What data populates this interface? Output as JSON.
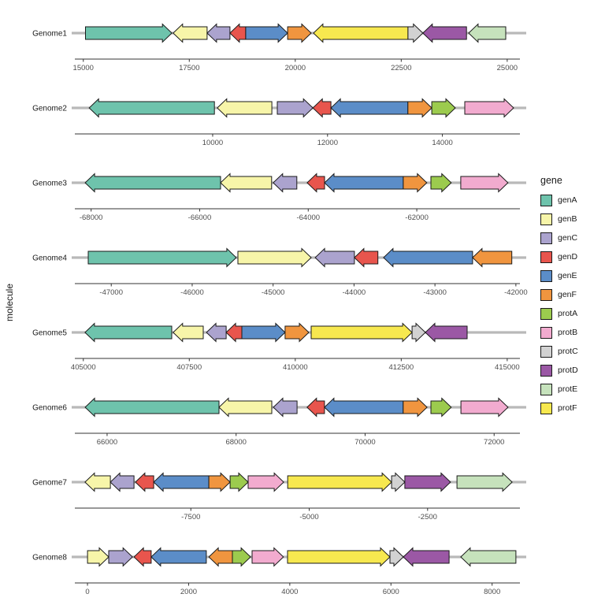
{
  "y_axis_label": "molecule",
  "legend": {
    "title": "gene",
    "entries": [
      {
        "label": "genA",
        "color": "#6EC3AC"
      },
      {
        "label": "genB",
        "color": "#F7F5A9"
      },
      {
        "label": "genC",
        "color": "#ABA3CE"
      },
      {
        "label": "genD",
        "color": "#E8554D"
      },
      {
        "label": "genE",
        "color": "#5B8DC8"
      },
      {
        "label": "genF",
        "color": "#F0953F"
      },
      {
        "label": "protA",
        "color": "#9CCB4E"
      },
      {
        "label": "protB",
        "color": "#F2ABCF"
      },
      {
        "label": "protC",
        "color": "#D2D2D2"
      },
      {
        "label": "protD",
        "color": "#9B58A5"
      },
      {
        "label": "protE",
        "color": "#C6E2BC"
      },
      {
        "label": "protF",
        "color": "#F7E84F"
      }
    ]
  },
  "chart_data": {
    "type": "gene_arrow_map",
    "title": "",
    "xlabel": "",
    "ylabel": "molecule",
    "legend_title": "gene",
    "track_color": "#B9B9B9",
    "outline_color": "#1A1A1A",
    "axis_color": "#333333",
    "tick_label_color": "#4D4D4D",
    "genomes": [
      {
        "name": "Genome1",
        "xlim": [
          14800,
          25300
        ],
        "ticks": [
          15000,
          17500,
          20000,
          22500,
          25000
        ],
        "genes": [
          {
            "gene": "genA",
            "start": 15050,
            "end": 17090,
            "strand": "+"
          },
          {
            "gene": "genB",
            "start": 17120,
            "end": 17920,
            "strand": "-"
          },
          {
            "gene": "genC",
            "start": 17920,
            "end": 18460,
            "strand": "-"
          },
          {
            "gene": "genD",
            "start": 18460,
            "end": 18830,
            "strand": "-"
          },
          {
            "gene": "genE",
            "start": 18830,
            "end": 19820,
            "strand": "+"
          },
          {
            "gene": "genF",
            "start": 19820,
            "end": 20375,
            "strand": "+"
          },
          {
            "gene": "protF",
            "start": 20430,
            "end": 22660,
            "strand": "-"
          },
          {
            "gene": "protC",
            "start": 22660,
            "end": 23010,
            "strand": "+"
          },
          {
            "gene": "protD",
            "start": 23010,
            "end": 24040,
            "strand": "-"
          },
          {
            "gene": "protE",
            "start": 24090,
            "end": 24965,
            "strand": "-"
          }
        ]
      },
      {
        "name": "Genome2",
        "xlim": [
          7600,
          15350
        ],
        "ticks": [
          10000,
          12000,
          14000
        ],
        "genes": [
          {
            "gene": "genA",
            "start": 7850,
            "end": 10030,
            "strand": "-"
          },
          {
            "gene": "genB",
            "start": 10080,
            "end": 11030,
            "strand": "-"
          },
          {
            "gene": "genC",
            "start": 11125,
            "end": 11745,
            "strand": "+"
          },
          {
            "gene": "genD",
            "start": 11745,
            "end": 12060,
            "strand": "-"
          },
          {
            "gene": "genE",
            "start": 12060,
            "end": 13400,
            "strand": "-"
          },
          {
            "gene": "genF",
            "start": 13400,
            "end": 13815,
            "strand": "+"
          },
          {
            "gene": "protA",
            "start": 13815,
            "end": 14225,
            "strand": "+"
          },
          {
            "gene": "protB",
            "start": 14390,
            "end": 15240,
            "strand": "+"
          }
        ]
      },
      {
        "name": "Genome3",
        "xlim": [
          -68300,
          -60100
        ],
        "ticks": [
          -68000,
          -66000,
          -64000,
          -62000
        ],
        "genes": [
          {
            "gene": "genA",
            "start": -68110,
            "end": -65615,
            "strand": "-"
          },
          {
            "gene": "genB",
            "start": -65615,
            "end": -64675,
            "strand": "-"
          },
          {
            "gene": "genC",
            "start": -64645,
            "end": -64210,
            "strand": "-"
          },
          {
            "gene": "genD",
            "start": -64020,
            "end": -63700,
            "strand": "-"
          },
          {
            "gene": "genE",
            "start": -63700,
            "end": -62250,
            "strand": "-"
          },
          {
            "gene": "genF",
            "start": -62250,
            "end": -61815,
            "strand": "+"
          },
          {
            "gene": "protA",
            "start": -61740,
            "end": -61365,
            "strand": "+"
          },
          {
            "gene": "protB",
            "start": -61190,
            "end": -60320,
            "strand": "+"
          }
        ]
      },
      {
        "name": "Genome4",
        "xlim": [
          -47450,
          -41950
        ],
        "ticks": [
          -47000,
          -46000,
          -45000,
          -44000,
          -43000,
          -42000
        ],
        "genes": [
          {
            "gene": "genA",
            "start": -47285,
            "end": -45455,
            "strand": "+"
          },
          {
            "gene": "genB",
            "start": -45435,
            "end": -44530,
            "strand": "+"
          },
          {
            "gene": "genC",
            "start": -44480,
            "end": -43995,
            "strand": "-"
          },
          {
            "gene": "genD",
            "start": -43995,
            "end": -43705,
            "strand": "-"
          },
          {
            "gene": "genE",
            "start": -43635,
            "end": -42535,
            "strand": "-"
          },
          {
            "gene": "genF",
            "start": -42535,
            "end": -42050,
            "strand": "-"
          }
        ]
      },
      {
        "name": "Genome5",
        "xlim": [
          404800,
          415300
        ],
        "ticks": [
          405000,
          407500,
          410000,
          412500,
          415000
        ],
        "genes": [
          {
            "gene": "genA",
            "start": 405040,
            "end": 407085,
            "strand": "-"
          },
          {
            "gene": "genB",
            "start": 407120,
            "end": 407830,
            "strand": "-"
          },
          {
            "gene": "genC",
            "start": 407905,
            "end": 408370,
            "strand": "-"
          },
          {
            "gene": "genD",
            "start": 408370,
            "end": 408740,
            "strand": "-"
          },
          {
            "gene": "genE",
            "start": 408740,
            "end": 409760,
            "strand": "+"
          },
          {
            "gene": "genF",
            "start": 409760,
            "end": 410320,
            "strand": "+"
          },
          {
            "gene": "protF",
            "start": 410375,
            "end": 412755,
            "strand": "+"
          },
          {
            "gene": "protC",
            "start": 412755,
            "end": 413070,
            "strand": "+"
          },
          {
            "gene": "protD",
            "start": 413070,
            "end": 414055,
            "strand": "-"
          }
        ]
      },
      {
        "name": "Genome6",
        "xlim": [
          65500,
          72400
        ],
        "ticks": [
          66000,
          68000,
          70000,
          72000
        ],
        "genes": [
          {
            "gene": "genA",
            "start": 65660,
            "end": 67735,
            "strand": "-"
          },
          {
            "gene": "genB",
            "start": 67735,
            "end": 68553,
            "strand": "-"
          },
          {
            "gene": "genC",
            "start": 68577,
            "end": 68945,
            "strand": "-"
          },
          {
            "gene": "genD",
            "start": 69100,
            "end": 69370,
            "strand": "-"
          },
          {
            "gene": "genE",
            "start": 69370,
            "end": 70590,
            "strand": "-"
          },
          {
            "gene": "genF",
            "start": 70590,
            "end": 70960,
            "strand": "+"
          },
          {
            "gene": "protA",
            "start": 71020,
            "end": 71335,
            "strand": "+"
          },
          {
            "gene": "protB",
            "start": 71485,
            "end": 72215,
            "strand": "+"
          }
        ]
      },
      {
        "name": "Genome7",
        "xlim": [
          -9950,
          -550
        ],
        "ticks": [
          -7500,
          -5000,
          -2500
        ],
        "genes": [
          {
            "gene": "genB",
            "start": -9735,
            "end": -9200,
            "strand": "-"
          },
          {
            "gene": "genC",
            "start": -9200,
            "end": -8700,
            "strand": "-"
          },
          {
            "gene": "genD",
            "start": -8670,
            "end": -8285,
            "strand": "-"
          },
          {
            "gene": "genE",
            "start": -8285,
            "end": -7120,
            "strand": "-"
          },
          {
            "gene": "genF",
            "start": -7120,
            "end": -6670,
            "strand": "+"
          },
          {
            "gene": "protA",
            "start": -6670,
            "end": -6290,
            "strand": "+"
          },
          {
            "gene": "protB",
            "start": -6290,
            "end": -5540,
            "strand": "+"
          },
          {
            "gene": "protF",
            "start": -5455,
            "end": -3260,
            "strand": "+"
          },
          {
            "gene": "protC",
            "start": -3260,
            "end": -2980,
            "strand": "+"
          },
          {
            "gene": "protD",
            "start": -2980,
            "end": -2015,
            "strand": "+"
          },
          {
            "gene": "protE",
            "start": -1880,
            "end": -715,
            "strand": "+"
          }
        ]
      },
      {
        "name": "Genome8",
        "xlim": [
          -250,
          8550
        ],
        "ticks": [
          0,
          2000,
          4000,
          6000,
          8000
        ],
        "genes": [
          {
            "gene": "genB",
            "start": 0,
            "end": 420,
            "strand": "+"
          },
          {
            "gene": "genC",
            "start": 420,
            "end": 890,
            "strand": "+"
          },
          {
            "gene": "genD",
            "start": 920,
            "end": 1260,
            "strand": "-"
          },
          {
            "gene": "genE",
            "start": 1260,
            "end": 2350,
            "strand": "-"
          },
          {
            "gene": "genF",
            "start": 2400,
            "end": 2865,
            "strand": "-"
          },
          {
            "gene": "protA",
            "start": 2865,
            "end": 3225,
            "strand": "+"
          },
          {
            "gene": "protB",
            "start": 3255,
            "end": 3875,
            "strand": "+"
          },
          {
            "gene": "protF",
            "start": 3955,
            "end": 5980,
            "strand": "+"
          },
          {
            "gene": "protC",
            "start": 5980,
            "end": 6245,
            "strand": "+"
          },
          {
            "gene": "protD",
            "start": 6245,
            "end": 7150,
            "strand": "-"
          },
          {
            "gene": "protE",
            "start": 7380,
            "end": 8470,
            "strand": "-"
          }
        ]
      }
    ]
  }
}
